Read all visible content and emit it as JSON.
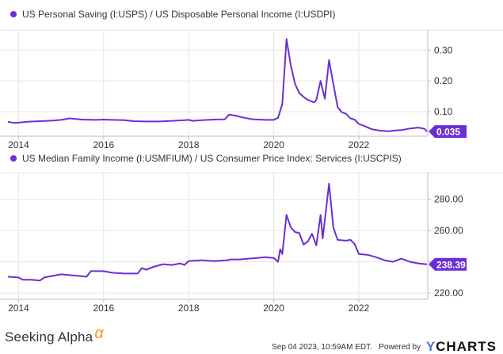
{
  "chart_data": [
    {
      "type": "line",
      "title": "US Personal Saving (I:USPS) / US Disposable Personal Income (I:USDPI)",
      "series": [
        {
          "name": "US Personal Saving (I:USPS) / US Disposable Personal Income (I:USDPI)",
          "color": "#6a2fd6",
          "points": [
            [
              2013.75,
              0.067
            ],
            [
              2013.9,
              0.063
            ],
            [
              2014.0,
              0.064
            ],
            [
              2014.2,
              0.067
            ],
            [
              2014.5,
              0.069
            ],
            [
              2014.8,
              0.071
            ],
            [
              2015.0,
              0.073
            ],
            [
              2015.2,
              0.078
            ],
            [
              2015.5,
              0.074
            ],
            [
              2015.8,
              0.073
            ],
            [
              2016.0,
              0.074
            ],
            [
              2016.2,
              0.073
            ],
            [
              2016.5,
              0.072
            ],
            [
              2016.7,
              0.069
            ],
            [
              2017.0,
              0.068
            ],
            [
              2017.3,
              0.068
            ],
            [
              2017.6,
              0.07
            ],
            [
              2017.9,
              0.072
            ],
            [
              2018.0,
              0.073
            ],
            [
              2018.1,
              0.07
            ],
            [
              2018.3,
              0.072
            ],
            [
              2018.6,
              0.074
            ],
            [
              2018.85,
              0.075
            ],
            [
              2018.95,
              0.09
            ],
            [
              2019.1,
              0.087
            ],
            [
              2019.3,
              0.08
            ],
            [
              2019.5,
              0.075
            ],
            [
              2019.8,
              0.073
            ],
            [
              2020.0,
              0.073
            ],
            [
              2020.1,
              0.08
            ],
            [
              2020.2,
              0.125
            ],
            [
              2020.3,
              0.336
            ],
            [
              2020.4,
              0.25
            ],
            [
              2020.5,
              0.19
            ],
            [
              2020.6,
              0.16
            ],
            [
              2020.7,
              0.148
            ],
            [
              2020.8,
              0.138
            ],
            [
              2020.95,
              0.13
            ],
            [
              2021.0,
              0.138
            ],
            [
              2021.1,
              0.2
            ],
            [
              2021.2,
              0.142
            ],
            [
              2021.3,
              0.268
            ],
            [
              2021.4,
              0.19
            ],
            [
              2021.5,
              0.115
            ],
            [
              2021.6,
              0.098
            ],
            [
              2021.7,
              0.093
            ],
            [
              2021.8,
              0.078
            ],
            [
              2021.9,
              0.074
            ],
            [
              2022.0,
              0.06
            ],
            [
              2022.15,
              0.052
            ],
            [
              2022.3,
              0.043
            ],
            [
              2022.5,
              0.038
            ],
            [
              2022.7,
              0.036
            ],
            [
              2022.8,
              0.038
            ],
            [
              2023.0,
              0.04
            ],
            [
              2023.2,
              0.045
            ],
            [
              2023.4,
              0.048
            ],
            [
              2023.55,
              0.044
            ],
            [
              2023.6,
              0.035
            ]
          ]
        }
      ],
      "last_value_label": "0.035",
      "xlim": [
        2013.75,
        2023.62
      ],
      "ylim": [
        0.02,
        0.36
      ],
      "xticks": [
        2014,
        2016,
        2018,
        2020,
        2022
      ],
      "xtick_labels": [
        "2014",
        "2016",
        "2018",
        "2020",
        "2022"
      ],
      "yticks": [
        0.1,
        0.2,
        0.3
      ],
      "ytick_labels": [
        "0.10",
        "0.20",
        "0.30"
      ],
      "grid": true,
      "legend_position": "top-left"
    },
    {
      "type": "line",
      "title": "US Median Family Income (I:USMFIUM) / US Consumer Price Index:    Services (I:USCPIS)",
      "series": [
        {
          "name": "US Median Family Income (I:USMFIUM) / US Consumer Price Index:    Services (I:USCPIS)",
          "color": "#6a2fd6",
          "points": [
            [
              2013.75,
              230.5
            ],
            [
              2014.0,
              230.0
            ],
            [
              2014.1,
              228.5
            ],
            [
              2014.3,
              228.5
            ],
            [
              2014.5,
              228.0
            ],
            [
              2014.6,
              230.0
            ],
            [
              2014.8,
              231.0
            ],
            [
              2015.0,
              232.0
            ],
            [
              2015.2,
              231.5
            ],
            [
              2015.4,
              231.0
            ],
            [
              2015.6,
              230.5
            ],
            [
              2015.7,
              234.0
            ],
            [
              2016.0,
              234.0
            ],
            [
              2016.2,
              233.0
            ],
            [
              2016.5,
              232.5
            ],
            [
              2016.8,
              232.5
            ],
            [
              2016.9,
              236.0
            ],
            [
              2017.0,
              235.0
            ],
            [
              2017.2,
              237.0
            ],
            [
              2017.4,
              238.5
            ],
            [
              2017.6,
              238.0
            ],
            [
              2017.8,
              239.0
            ],
            [
              2017.9,
              238.0
            ],
            [
              2018.0,
              240.5
            ],
            [
              2018.3,
              241.0
            ],
            [
              2018.6,
              240.5
            ],
            [
              2018.9,
              241.0
            ],
            [
              2019.0,
              241.5
            ],
            [
              2019.2,
              241.5
            ],
            [
              2019.4,
              242.0
            ],
            [
              2019.6,
              242.5
            ],
            [
              2019.8,
              243.0
            ],
            [
              2020.0,
              242.5
            ],
            [
              2020.1,
              240.0
            ],
            [
              2020.15,
              248.0
            ],
            [
              2020.2,
              245.0
            ],
            [
              2020.3,
              270.0
            ],
            [
              2020.4,
              262.0
            ],
            [
              2020.5,
              259.0
            ],
            [
              2020.6,
              258.5
            ],
            [
              2020.7,
              251.0
            ],
            [
              2020.8,
              253.0
            ],
            [
              2020.9,
              258.0
            ],
            [
              2021.0,
              250.5
            ],
            [
              2021.1,
              270.0
            ],
            [
              2021.15,
              255.0
            ],
            [
              2021.3,
              290.0
            ],
            [
              2021.4,
              262.0
            ],
            [
              2021.5,
              254.0
            ],
            [
              2021.7,
              253.5
            ],
            [
              2021.8,
              254.0
            ],
            [
              2021.9,
              251.5
            ],
            [
              2022.0,
              245.0
            ],
            [
              2022.2,
              244.5
            ],
            [
              2022.4,
              243.0
            ],
            [
              2022.6,
              241.0
            ],
            [
              2022.8,
              240.0
            ],
            [
              2023.0,
              242.0
            ],
            [
              2023.2,
              240.0
            ],
            [
              2023.4,
              239.0
            ],
            [
              2023.6,
              238.39
            ]
          ]
        }
      ],
      "last_value_label": "238.39",
      "xlim": [
        2013.75,
        2023.62
      ],
      "ylim": [
        216,
        296
      ],
      "xticks": [
        2014,
        2016,
        2018,
        2020,
        2022
      ],
      "xtick_labels": [
        "2014",
        "2016",
        "2018",
        "2020",
        "2022"
      ],
      "yticks": [
        220,
        240,
        260,
        280
      ],
      "ytick_labels": [
        "220.00",
        "240.00",
        "260.00",
        "280.00"
      ],
      "grid": true,
      "legend_position": "top-left"
    }
  ],
  "footer": {
    "brand_text": "Seeking Alpha",
    "brand_alpha": "α",
    "timestamp": "Sep 04 2023, 10:59AM EDT.",
    "powered_by": "Powered by",
    "ycharts_y": "Y",
    "ycharts_rest": "CHARTS"
  },
  "colors": {
    "series": "#6a2fd6",
    "grid": "#e6e6e6",
    "axis": "#bbbbbb",
    "alpha_logo": "#f39c12",
    "ycharts_y": "#4a76c7"
  }
}
